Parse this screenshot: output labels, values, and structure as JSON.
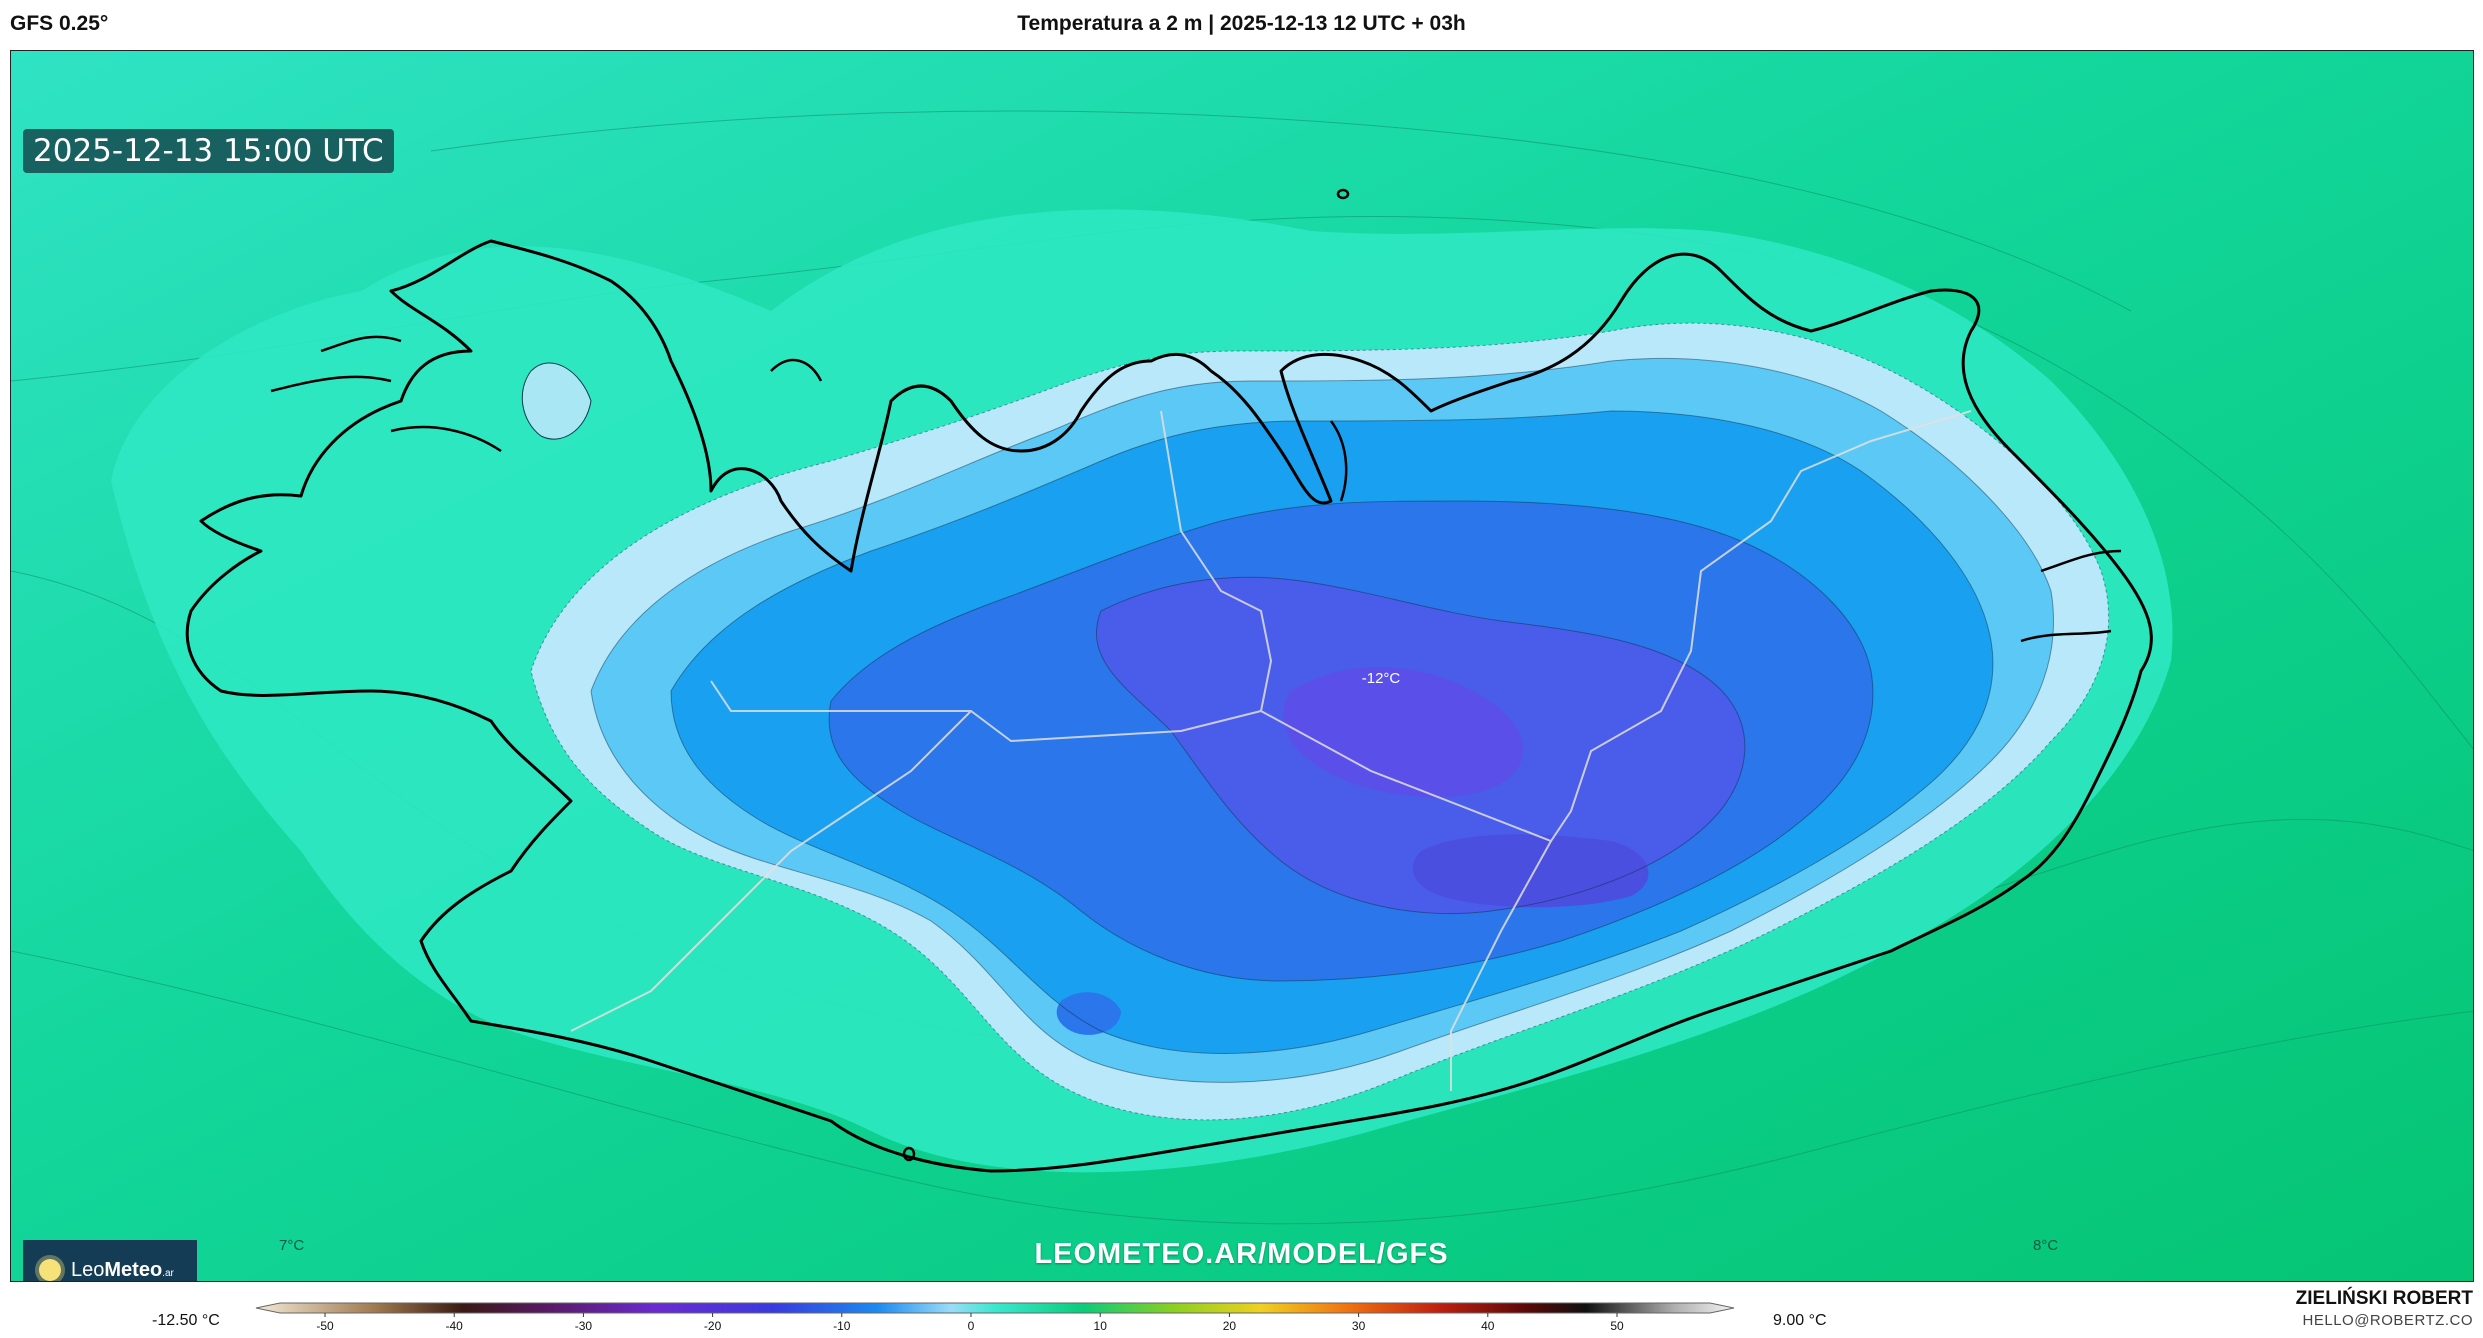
{
  "header": {
    "model": "GFS 0.25°",
    "title": "Temperatura a 2 m | 2025-12-13 12 UTC + 03h"
  },
  "map": {
    "valid_time": "2025-12-13 15:00 UTC",
    "center_label": "-12°C",
    "corner_left_label": "7°C",
    "corner_right_label": "8°C",
    "watermark": "LEOMETEO.AR/MODEL/GFS",
    "colors": {
      "sea": "#12d696",
      "sea_dark": "#0bc77a",
      "coast_warm": "#2ee8c2",
      "cold_1": "#b8e8fa",
      "cold_2": "#5cc8f5",
      "cold_3": "#1aa0f0",
      "cold_4": "#2a76ea",
      "cold_5": "#4a5cea",
      "cold_6": "#5a4fe8"
    }
  },
  "logo": {
    "name_light": "Leo",
    "name_bold": "Meteo",
    "suffix": ".ar"
  },
  "colorbar": {
    "min_label": "-12.50 °C",
    "max_label": "9.00 °C",
    "ticks": [
      "-50",
      "-40",
      "-30",
      "-20",
      "-10",
      "0",
      "10",
      "20",
      "30",
      "40",
      "50"
    ]
  },
  "author": {
    "name": "ZIELIŃSKI ROBERT",
    "email": "HELLO@ROBERTZ.CO"
  }
}
